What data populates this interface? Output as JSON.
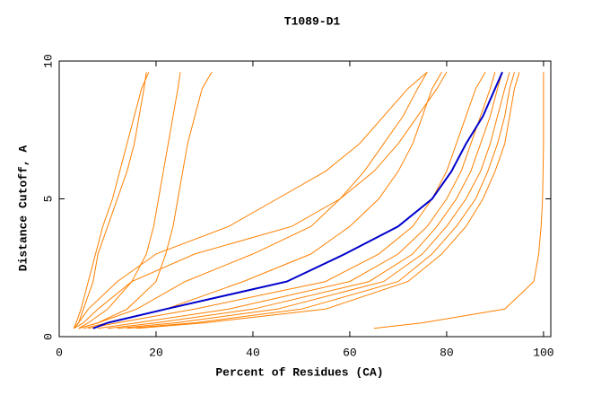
{
  "chart_data": {
    "type": "line",
    "title": "T1089-D1",
    "x_label": "Percent of Residues (CA)",
    "y_label": "Distance Cutoff, A",
    "xlim": [
      0,
      101.5
    ],
    "ylim": [
      0,
      10
    ],
    "xticks": [
      0,
      20,
      40,
      60,
      80,
      100
    ],
    "yticks": [
      0,
      5,
      10
    ],
    "y": [
      0.3,
      0.5,
      1,
      2,
      3,
      4,
      5,
      6,
      7,
      8,
      9,
      9.6
    ],
    "series": [
      {
        "color": "#ff8000",
        "x": [
          3,
          3.5,
          4.5,
          6,
          7.5,
          9,
          11,
          12.5,
          14,
          15.5,
          17,
          18.5
        ]
      },
      {
        "color": "#ff8000",
        "x": [
          3,
          4,
          5,
          7,
          8,
          10,
          12,
          14,
          15.5,
          16.5,
          17.5,
          18
        ]
      },
      {
        "color": "#ff8000",
        "x": [
          4,
          6,
          10,
          15,
          18,
          19.5,
          20.5,
          21.5,
          22.5,
          23.5,
          24.5,
          25
        ]
      },
      {
        "color": "#ff8000",
        "x": [
          4,
          8,
          14,
          20,
          22,
          23.5,
          24.5,
          25.5,
          26.5,
          28,
          29.5,
          31.5
        ]
      },
      {
        "color": "#ff8000",
        "x": [
          3,
          4,
          6,
          12,
          20,
          35,
          45,
          55,
          62,
          67,
          72,
          76
        ]
      },
      {
        "color": "#ff8000",
        "x": [
          3,
          5,
          8,
          15,
          28,
          48,
          58,
          65,
          70,
          74,
          78,
          80
        ]
      },
      {
        "color": "#ff8000",
        "x": [
          4,
          8,
          16,
          26,
          40,
          52,
          58,
          63,
          67,
          71,
          74,
          76
        ]
      },
      {
        "color": "#ff8000",
        "x": [
          5,
          10,
          22,
          38,
          52,
          60,
          66,
          70,
          73,
          75,
          77,
          79
        ]
      },
      {
        "color": "#ff8000",
        "x": [
          6,
          12,
          28,
          55,
          66,
          73,
          77,
          80,
          82,
          84,
          86,
          88
        ]
      },
      {
        "color": "#ff8000",
        "x": [
          8,
          16,
          35,
          60,
          70,
          76,
          80,
          83,
          85,
          87,
          89,
          90
        ]
      },
      {
        "color": "#ff8000",
        "x": [
          10,
          20,
          40,
          64,
          73,
          78,
          82,
          85,
          87,
          89,
          90.5,
          91.5
        ]
      },
      {
        "color": "#ff8000",
        "x": [
          12,
          24,
          45,
          67,
          75,
          80,
          84,
          87,
          89,
          90.5,
          92,
          93
        ]
      },
      {
        "color": "#ff8000",
        "x": [
          14,
          28,
          50,
          70,
          77,
          82,
          86,
          88.5,
          90.5,
          92,
          93,
          94
        ]
      },
      {
        "color": "#ff8000",
        "x": [
          16,
          30,
          55,
          72,
          79,
          84,
          87.5,
          90,
          92,
          93,
          94,
          95
        ]
      },
      {
        "color": "#ff8000",
        "x": [
          65,
          75,
          92,
          98,
          99,
          99.5,
          99.8,
          99.9,
          100,
          100,
          100,
          100
        ]
      },
      {
        "color": "#0000cc",
        "x": [
          7,
          10,
          22,
          47,
          59,
          70,
          77,
          81,
          84,
          87.5,
          90,
          91.5
        ]
      }
    ]
  }
}
